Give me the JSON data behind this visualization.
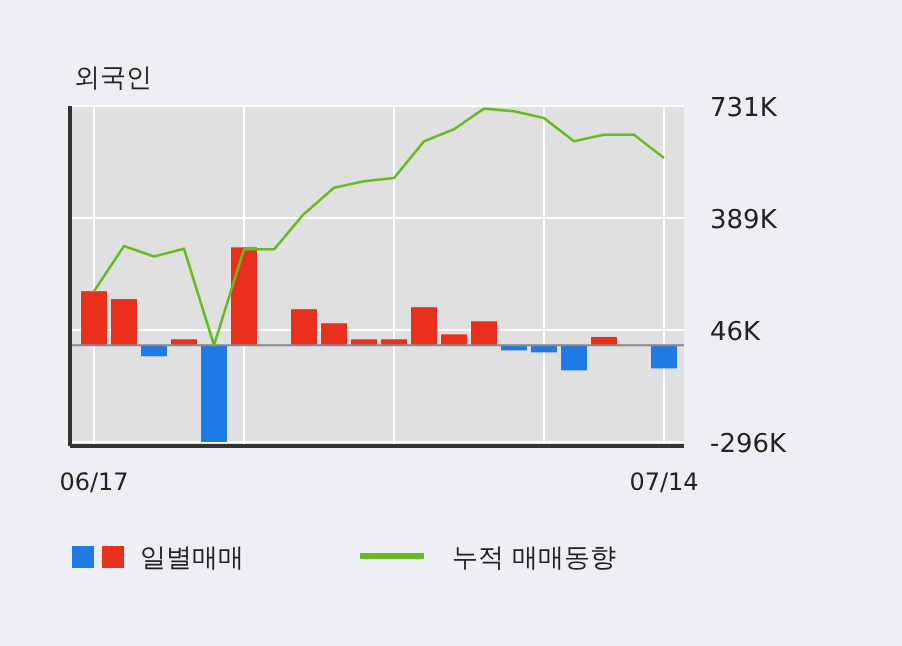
{
  "chart_data": {
    "type": "bar",
    "title": "외국인",
    "categories": [
      "06/17",
      null,
      null,
      null,
      null,
      null,
      null,
      null,
      null,
      null,
      null,
      null,
      null,
      null,
      null,
      null,
      null,
      null,
      null,
      "07/14"
    ],
    "series": [
      {
        "name": "일별매매",
        "colors": [
          "#e8301c",
          "#e8301c",
          "#1e7be6",
          "#e8301c",
          "#1e7be6",
          "#e8301c",
          "#e8301c",
          "#e8301c",
          "#e8301c",
          "#e8301c",
          "#e8301c",
          "#e8301c",
          "#e8301c",
          "#e8301c",
          "#1e7be6",
          "#1e7be6",
          "#1e7be6",
          "#e8301c",
          "#e8301c",
          "#1e7be6"
        ],
        "values": [
          165,
          141,
          -34,
          18,
          -296,
          299,
          0,
          110,
          67,
          18,
          18,
          116,
          33,
          73,
          -16,
          -22,
          -77,
          25,
          0,
          -71
        ]
      },
      {
        "name": "누적 매매동향",
        "type": "line",
        "color": "#66bb22",
        "values": [
          165,
          303,
          271,
          295,
          0,
          293,
          293,
          401,
          481,
          501,
          511,
          623,
          660,
          723,
          715,
          694,
          623,
          643,
          643,
          572
        ]
      }
    ],
    "ylim": [
      -296,
      731
    ],
    "yticks": [
      {
        "value": 731,
        "label": "731K"
      },
      {
        "value": 389,
        "label": "389K"
      },
      {
        "value": 46,
        "label": "46K"
      },
      {
        "value": -296,
        "label": "-296K"
      }
    ],
    "grid": true,
    "legend": "bottom left"
  }
}
